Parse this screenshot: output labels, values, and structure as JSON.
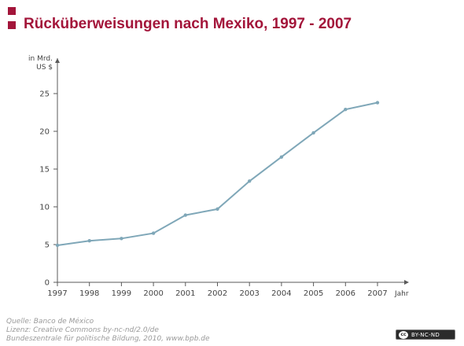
{
  "title": "Rücküberweisungen nach Mexiko, 1997 - 2007",
  "colors": {
    "brand": "#a3153a",
    "line": "#7fa7b8",
    "axis": "#5a5a5a"
  },
  "chart_data": {
    "type": "line",
    "ylabel_line1": "in Mrd.",
    "ylabel_line2": "US $",
    "xlabel": "Jahr",
    "ylim": [
      0,
      27
    ],
    "yticks": [
      0,
      5,
      10,
      15,
      20,
      25
    ],
    "categories": [
      "1997",
      "1998",
      "1999",
      "2000",
      "2001",
      "2002",
      "2003",
      "2004",
      "2005",
      "2006",
      "2007"
    ],
    "values": [
      4.9,
      5.5,
      5.8,
      6.5,
      8.9,
      9.7,
      13.4,
      16.6,
      19.8,
      22.9,
      23.8
    ],
    "grid": false
  },
  "footer": {
    "source": "Quelle: Banco de México",
    "license": "Lizenz: Creative Commons by-nc-nd/2.0/de",
    "publisher": "Bundeszentrale für politische Bildung, 2010, www.bpb.de"
  },
  "badge": {
    "text": "BY-NC-ND",
    "logo": "cc"
  }
}
